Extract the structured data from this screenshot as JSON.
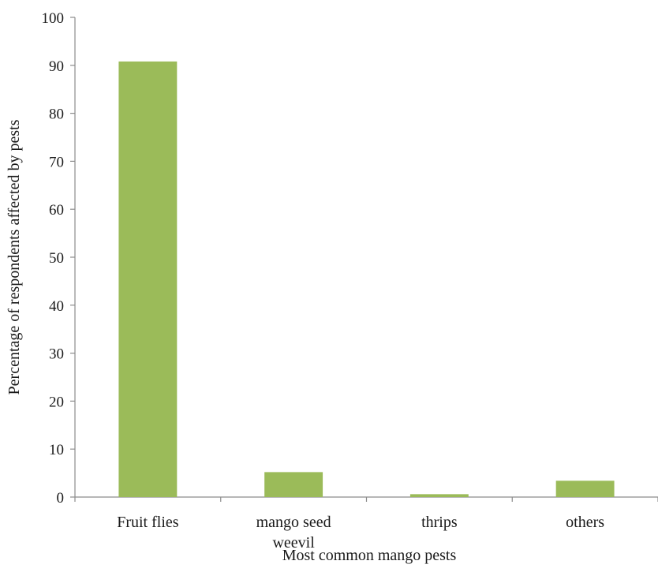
{
  "chart_data": {
    "type": "bar",
    "title": "",
    "xlabel": "Most common mango pests",
    "ylabel": "Percentage of respondents affected by pests",
    "categories": [
      [
        "Fruit flies"
      ],
      [
        "mango seed",
        "weevil"
      ],
      [
        "thrips"
      ],
      [
        "others"
      ]
    ],
    "values": [
      90.8,
      5.2,
      0.6,
      3.4
    ],
    "ylim": [
      0,
      100
    ],
    "yticks": [
      0,
      10,
      20,
      30,
      40,
      50,
      60,
      70,
      80,
      90,
      100
    ],
    "bar_color": "#9bbb59",
    "grid": false,
    "legend": "none"
  }
}
